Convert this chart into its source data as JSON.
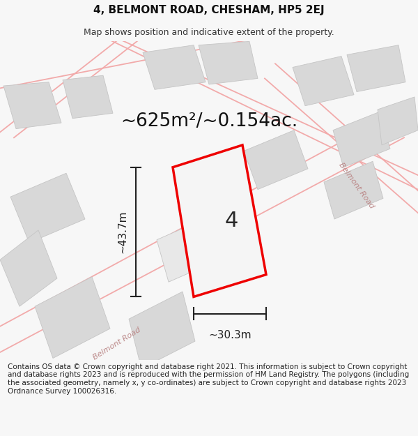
{
  "title": "4, BELMONT ROAD, CHESHAM, HP5 2EJ",
  "subtitle": "Map shows position and indicative extent of the property.",
  "area_text": "~625m²/~0.154ac.",
  "label_4": "4",
  "dim_height": "~43.7m",
  "dim_width": "~30.3m",
  "road_label_lower": "Belmont Road",
  "road_label_right": "Belmont Road",
  "footer": "Contains OS data © Crown copyright and database right 2021. This information is subject to Crown copyright and database rights 2023 and is reproduced with the permission of HM Land Registry. The polygons (including the associated geometry, namely x, y co-ordinates) are subject to Crown copyright and database rights 2023 Ordnance Survey 100026316.",
  "bg_color": "#f7f7f7",
  "map_bg": "#ffffff",
  "plot_edge_color": "#ee0000",
  "plot_fill_color": "#f5f5f5",
  "road_color": "#f2aaaa",
  "road_lw": 1.3,
  "building_color": "#d8d8d8",
  "building_edge": "#c5c5c5",
  "dim_color": "#222222",
  "title_fontsize": 11,
  "subtitle_fontsize": 9,
  "area_fontsize": 19,
  "label_fontsize": 22,
  "dim_fontsize": 11,
  "road_label_fontsize": 8,
  "footer_fontsize": 7.5
}
